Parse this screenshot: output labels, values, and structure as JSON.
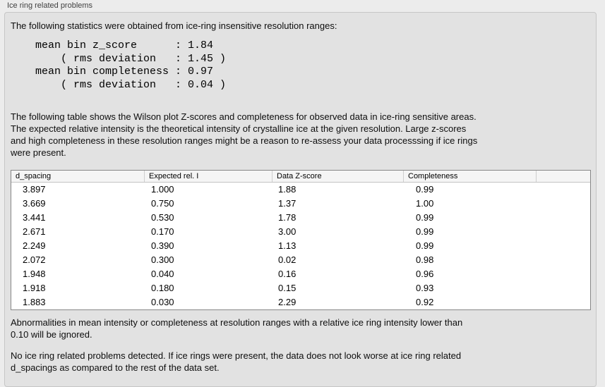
{
  "panel": {
    "title": "Ice ring related problems"
  },
  "intro": "The following statistics were obtained from ice-ring insensitive resolution ranges:",
  "stats_block": "mean bin z_score      : 1.84\n    ( rms deviation   : 1.45 )\nmean bin completeness : 0.97\n    ( rms deviation   : 0.04 )",
  "stats_values": {
    "mean_bin_z_score": "1.84",
    "z_score_rms_deviation": "1.45",
    "mean_bin_completeness": "0.97",
    "completeness_rms_deviation": "0.04"
  },
  "description": "The following table shows the Wilson plot Z-scores and completeness for observed data in ice-ring sensitive areas.\nThe expected relative intensity is the theoretical intensity of crystalline ice at the given resolution. Large z-scores\nand high completeness in these resolution ranges might be a reason to re-assess your data processsing if ice rings\nwere present.",
  "table": {
    "columns": [
      "d_spacing",
      "Expected rel. I",
      "Data Z-score",
      "Completeness"
    ],
    "rows": [
      [
        "3.897",
        "1.000",
        "1.88",
        "0.99"
      ],
      [
        "3.669",
        "0.750",
        "1.37",
        "1.00"
      ],
      [
        "3.441",
        "0.530",
        "1.78",
        "0.99"
      ],
      [
        "2.671",
        "0.170",
        "3.00",
        "0.99"
      ],
      [
        "2.249",
        "0.390",
        "1.13",
        "0.99"
      ],
      [
        "2.072",
        "0.300",
        "0.02",
        "0.98"
      ],
      [
        "1.948",
        "0.040",
        "0.16",
        "0.96"
      ],
      [
        "1.918",
        "0.180",
        "0.15",
        "0.93"
      ],
      [
        "1.883",
        "0.030",
        "2.29",
        "0.92"
      ]
    ]
  },
  "note": "Abnormalities in mean intensity or completeness at resolution ranges with a relative ice ring intensity lower than\n0.10 will be ignored.",
  "conclusion": "No ice ring related problems detected. If ice rings were present, the data does not look worse at ice ring related\nd_spacings as compared to the rest of the data set."
}
